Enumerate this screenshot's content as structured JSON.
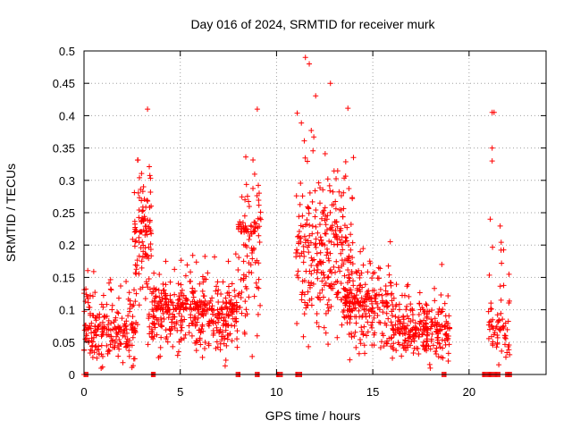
{
  "chart_data": {
    "type": "scatter",
    "title": "Day 016 of 2024, SRMTID for receiver murk",
    "xlabel": "GPS time / hours",
    "ylabel": "SRMTID / TECUs",
    "xlim": [
      0,
      24
    ],
    "ylim": [
      0,
      0.5
    ],
    "x_ticks": [
      0,
      5,
      10,
      15,
      20
    ],
    "x_tick_labels": [
      "0",
      "5",
      "10",
      "15",
      "20"
    ],
    "y_ticks": [
      0,
      0.05,
      0.1,
      0.15,
      0.2,
      0.25,
      0.3,
      0.35,
      0.4,
      0.45,
      0.5
    ],
    "y_tick_labels": [
      "0",
      "0.05",
      "0.1",
      "0.15",
      "0.2",
      "0.25",
      "0.3",
      "0.35",
      "0.4",
      "0.45",
      "0.5"
    ],
    "grid": true,
    "marker": "plus",
    "color": "#ff0000",
    "series": [
      {
        "name": "SRMTID",
        "clusters": [
          {
            "x_range": [
              0.0,
              2.7
            ],
            "y_median": 0.07,
            "y_max": 0.25,
            "count": 220
          },
          {
            "x_range": [
              2.6,
              3.5
            ],
            "y_median": 0.22,
            "y_max": 0.41,
            "count": 110
          },
          {
            "x_range": [
              3.5,
              8.0
            ],
            "y_median": 0.1,
            "y_max": 0.22,
            "count": 420
          },
          {
            "x_range": [
              8.0,
              9.2
            ],
            "y_median": 0.22,
            "y_max": 0.41,
            "count": 110
          },
          {
            "x_range": [
              11.0,
              14.0
            ],
            "y_median": 0.2,
            "y_max": 0.49,
            "count": 300
          },
          {
            "x_range": [
              13.5,
              16.0
            ],
            "y_median": 0.11,
            "y_max": 0.25,
            "count": 220
          },
          {
            "x_range": [
              16.0,
              19.0
            ],
            "y_median": 0.07,
            "y_max": 0.21,
            "count": 260
          },
          {
            "x_range": [
              21.0,
              22.2
            ],
            "y_median": 0.08,
            "y_max": 0.4,
            "count": 70
          }
        ],
        "outliers": [
          {
            "x": 11.5,
            "y": 0.49
          },
          {
            "x": 11.7,
            "y": 0.48
          },
          {
            "x": 12.8,
            "y": 0.45
          },
          {
            "x": 3.3,
            "y": 0.41
          },
          {
            "x": 9.0,
            "y": 0.41
          },
          {
            "x": 21.2,
            "y": 0.405
          },
          {
            "x": 21.3,
            "y": 0.405
          },
          {
            "x": 21.2,
            "y": 0.35
          },
          {
            "x": 21.2,
            "y": 0.33
          },
          {
            "x": 21.1,
            "y": 0.24
          }
        ],
        "zero_segments": [
          {
            "x0": 0.0,
            "x1": 0.2
          },
          {
            "x0": 3.5,
            "x1": 3.7
          },
          {
            "x0": 7.9,
            "x1": 8.1
          },
          {
            "x0": 8.9,
            "x1": 9.1
          },
          {
            "x0": 10.0,
            "x1": 10.3
          },
          {
            "x0": 11.0,
            "x1": 11.3
          },
          {
            "x0": 18.6,
            "x1": 18.8
          },
          {
            "x0": 20.7,
            "x1": 21.6
          },
          {
            "x0": 21.9,
            "x1": 22.2
          }
        ]
      }
    ]
  }
}
